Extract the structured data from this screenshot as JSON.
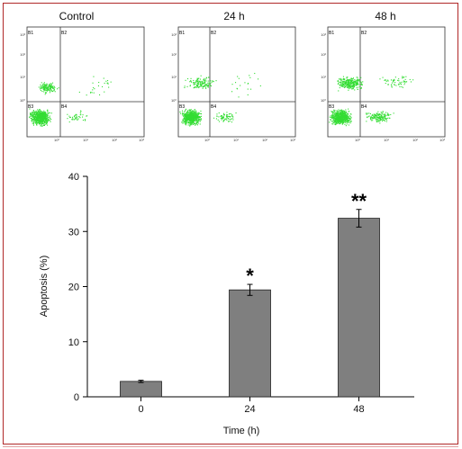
{
  "panels": [
    {
      "title": "Control",
      "quadrants": [
        "B1",
        "B2",
        "B3",
        "B4"
      ]
    },
    {
      "title": "24 h",
      "quadrants": [
        "B1",
        "B2",
        "B3",
        "B4"
      ]
    },
    {
      "title": "48 h",
      "quadrants": [
        "B1",
        "B2",
        "B3",
        "B4"
      ]
    }
  ],
  "flow_ticks": {
    "y": [
      "10³",
      "10²",
      "10¹",
      "10⁰"
    ],
    "x": [
      "10⁰",
      "10¹",
      "10²",
      "10³"
    ]
  },
  "colors": {
    "dots": "#33dd33",
    "bar": "#7f7f7f",
    "frame": "#b02828"
  },
  "chart_data": {
    "type": "bar",
    "categories": [
      "0",
      "24",
      "48"
    ],
    "values": [
      2.8,
      19.4,
      32.4
    ],
    "errors": [
      0.2,
      1.0,
      1.6
    ],
    "significance": [
      "",
      "*",
      "**"
    ],
    "xlabel": "Time (h)",
    "ylabel": "Apoptosis (%)",
    "ylim": [
      0,
      40
    ],
    "yticks": [
      "0",
      "10",
      "20",
      "30",
      "40"
    ]
  }
}
